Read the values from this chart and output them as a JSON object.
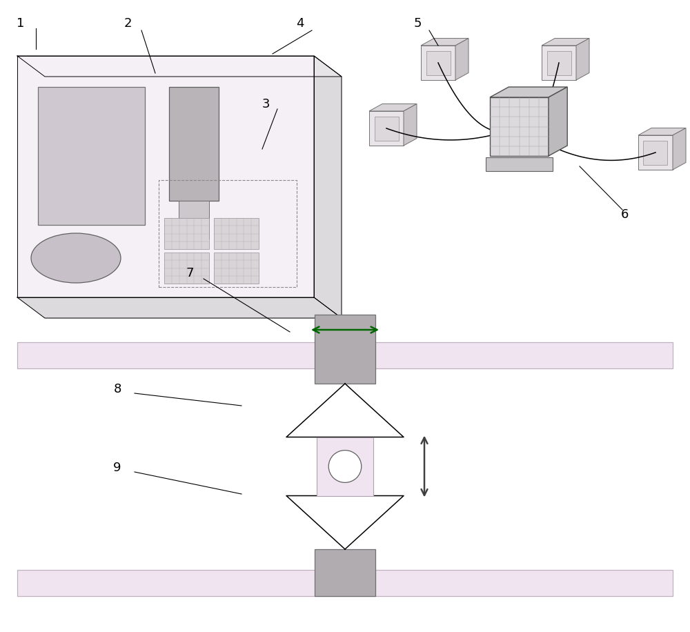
{
  "bg_color": "#ffffff",
  "label_color": "#000000",
  "box_front_fill": "#f5f0f5",
  "box_top_fill": "#e8e5e8",
  "box_right_fill": "#dddadd",
  "component_fill_dark": "#c0bcc0",
  "component_fill_light": "#d8d4d8",
  "rail_fill": "#f0e8f0",
  "rail_stroke": "#b0a8b0",
  "scanner_block_fill": "#b0acb0",
  "lens_fill": "#f0e8f0",
  "arrow_color_h": "#008800",
  "arrow_color_v": "#404040",
  "cam_front": "#e8e4e8",
  "cam_top": "#d8d4d8",
  "cam_right": "#c8c4c8",
  "cam_inner": "#dcd8dc",
  "comp_front": "#e0dce0",
  "comp_grid": "#c0bcc0",
  "label_fs": 13
}
